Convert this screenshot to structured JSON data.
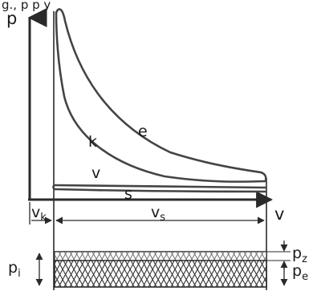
{
  "header_fragment": "g.,                  p      p            y",
  "axes": {
    "y_label": "p",
    "x_label": "v"
  },
  "curve_labels": {
    "expansion": "e",
    "compression": "k",
    "intake": "v",
    "exhaust": "s"
  },
  "volumes": {
    "clearance_main": "v",
    "clearance_sub": "k",
    "stroke_main": "v",
    "stroke_sub": "s"
  },
  "pressures": {
    "indicated_main": "p",
    "indicated_sub": "i",
    "pumping_main": "p",
    "pumping_sub": "z",
    "effective_main": "p",
    "effective_sub": "e"
  },
  "colors": {
    "ink": "#2a2a2a",
    "curve": "#444444"
  }
}
